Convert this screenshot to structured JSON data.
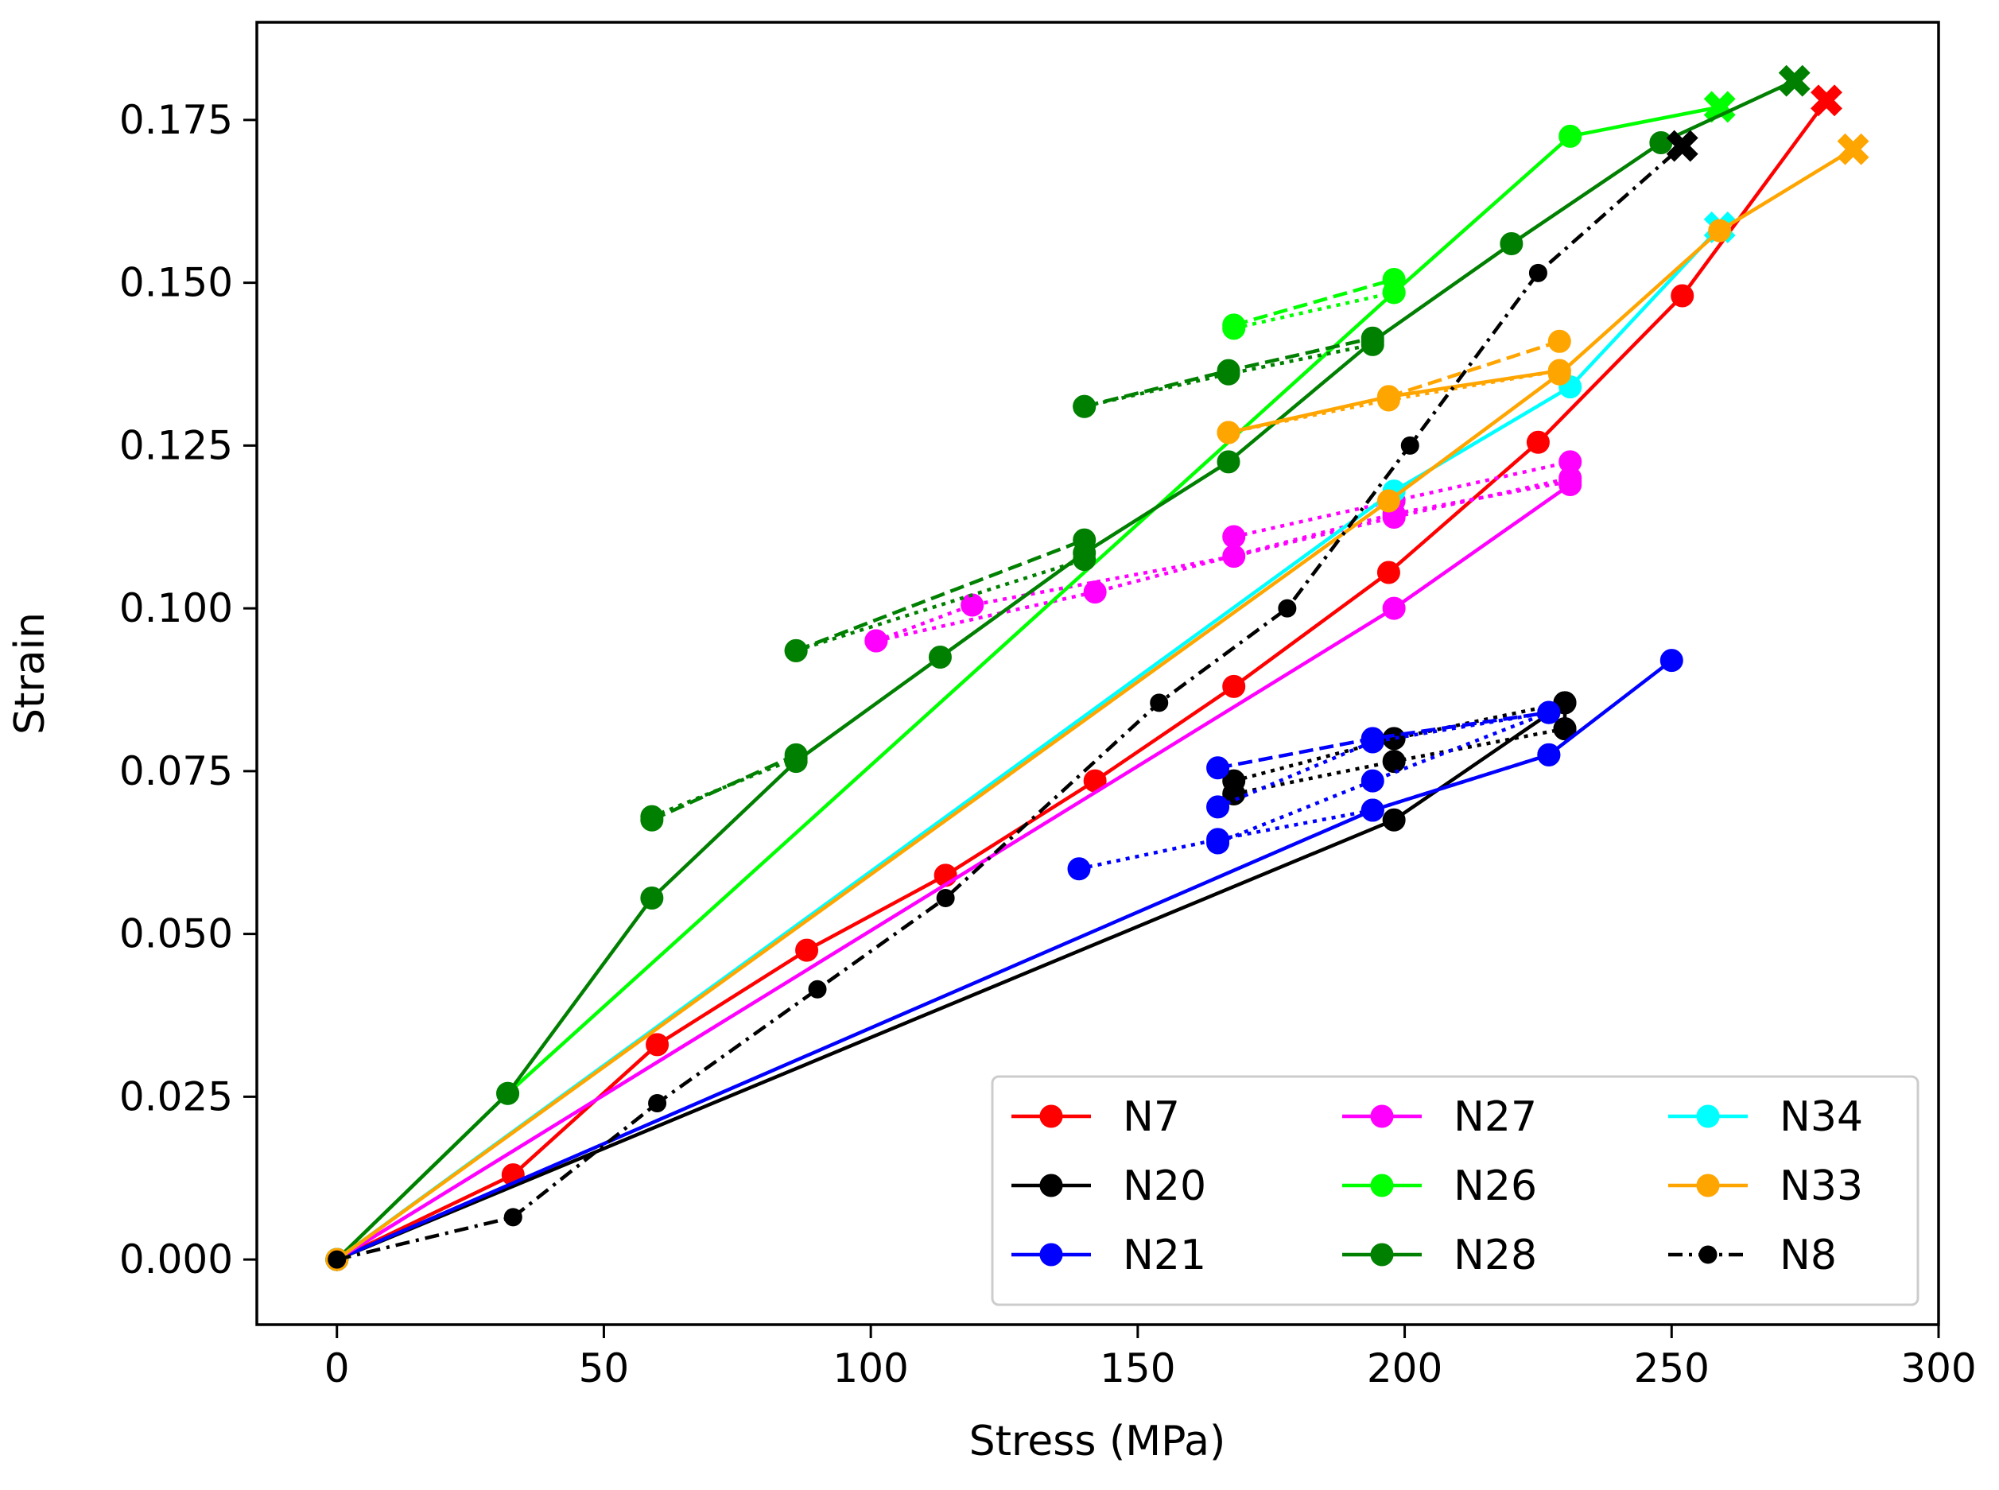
{
  "chart_data": {
    "type": "line",
    "title": "",
    "xlabel": "Stress (MPa)",
    "ylabel": "Strain",
    "xlim": [
      -15,
      300
    ],
    "ylim": [
      -0.01,
      0.19
    ],
    "xticks": [
      0,
      50,
      100,
      150,
      200,
      250,
      300
    ],
    "yticks": [
      0.0,
      0.025,
      0.05,
      0.075,
      0.1,
      0.125,
      0.15,
      0.175
    ],
    "xtick_labels": [
      "0",
      "50",
      "100",
      "150",
      "200",
      "250",
      "300"
    ],
    "ytick_labels": [
      "0.000",
      "0.025",
      "0.050",
      "0.075",
      "0.100",
      "0.125",
      "0.150",
      "0.175"
    ],
    "grid": false,
    "legend_position": "bottom-right",
    "series": [
      {
        "name": "N7",
        "color": "#ff0000",
        "style": "solid",
        "points": [
          [
            0,
            0.0
          ],
          [
            33,
            0.013
          ],
          [
            60,
            0.033
          ],
          [
            88,
            0.0475
          ],
          [
            114,
            0.059
          ],
          [
            142,
            0.0735
          ],
          [
            168,
            0.088
          ],
          [
            197,
            0.1055
          ],
          [
            225,
            0.1255
          ],
          [
            252,
            0.148
          ],
          [
            279,
            0.178
          ]
        ],
        "end_marker": [
          279,
          0.178
        ],
        "cycles": []
      },
      {
        "name": "N20",
        "color": "#000000",
        "style": "solid",
        "points": [
          [
            0,
            0.0
          ],
          [
            198,
            0.0675
          ],
          [
            230,
            0.0855
          ],
          [
            230,
            0.0815
          ]
        ],
        "end_marker": null,
        "cycles": [
          {
            "style": "dotted",
            "points": [
              [
                168,
                0.0735
              ],
              [
                198,
                0.08
              ],
              [
                230,
                0.0855
              ]
            ]
          },
          {
            "style": "dotted",
            "points": [
              [
                168,
                0.0715
              ],
              [
                198,
                0.0765
              ],
              [
                230,
                0.0815
              ]
            ]
          }
        ]
      },
      {
        "name": "N21",
        "color": "#0000ff",
        "style": "solid",
        "points": [
          [
            0,
            0.0
          ],
          [
            194,
            0.069
          ],
          [
            227,
            0.0775
          ],
          [
            250,
            0.092
          ]
        ],
        "end_marker": null,
        "cycles": [
          {
            "style": "dotted",
            "points": [
              [
                139,
                0.06
              ],
              [
                165,
                0.0645
              ],
              [
                194,
                0.069
              ],
              [
                227,
                0.0775
              ]
            ]
          },
          {
            "style": "dotted",
            "points": [
              [
                165,
                0.064
              ],
              [
                194,
                0.0735
              ],
              [
                227,
                0.084
              ]
            ]
          },
          {
            "style": "dotted",
            "points": [
              [
                165,
                0.0695
              ],
              [
                194,
                0.0795
              ],
              [
                227,
                0.084
              ]
            ]
          },
          {
            "style": "dashed",
            "points": [
              [
                165,
                0.0755
              ],
              [
                194,
                0.08
              ],
              [
                227,
                0.084
              ]
            ]
          }
        ]
      },
      {
        "name": "N27",
        "color": "#ff00ff",
        "style": "solid",
        "points": [
          [
            0,
            0.0
          ],
          [
            198,
            0.1
          ],
          [
            231,
            0.119
          ]
        ],
        "end_marker": null,
        "cycles": [
          {
            "style": "dotted",
            "points": [
              [
                101,
                0.095
              ],
              [
                142,
                0.1025
              ],
              [
                198,
                0.1145
              ],
              [
                231,
                0.1195
              ]
            ]
          },
          {
            "style": "dotted",
            "points": [
              [
                101,
                0.095
              ],
              [
                119,
                0.1005
              ],
              [
                168,
                0.108
              ],
              [
                198,
                0.114
              ],
              [
                231,
                0.12
              ]
            ]
          },
          {
            "style": "dotted",
            "points": [
              [
                168,
                0.111
              ],
              [
                198,
                0.1165
              ],
              [
                231,
                0.1225
              ]
            ]
          }
        ]
      },
      {
        "name": "N26",
        "color": "#00ff00",
        "style": "solid",
        "points": [
          [
            0,
            0.0
          ],
          [
            32,
            0.0255
          ],
          [
            198,
            0.1485
          ],
          [
            231,
            0.1725
          ],
          [
            259,
            0.177
          ]
        ],
        "end_marker": [
          259,
          0.177
        ],
        "cycles": [
          {
            "style": "dashed",
            "points": [
              [
                168,
                0.1435
              ],
              [
                198,
                0.1505
              ]
            ]
          },
          {
            "style": "dotted",
            "points": [
              [
                168,
                0.143
              ],
              [
                198,
                0.1485
              ]
            ]
          }
        ]
      },
      {
        "name": "N28",
        "color": "#008000",
        "style": "solid",
        "points": [
          [
            0,
            0.0
          ],
          [
            32,
            0.0255
          ],
          [
            59,
            0.0555
          ],
          [
            86,
            0.0765
          ],
          [
            113,
            0.0925
          ],
          [
            140,
            0.1085
          ],
          [
            167,
            0.1225
          ],
          [
            194,
            0.141
          ],
          [
            220,
            0.156
          ],
          [
            248,
            0.1715
          ],
          [
            273,
            0.181
          ]
        ],
        "end_marker": [
          273,
          0.181
        ],
        "cycles": [
          {
            "style": "dashed",
            "points": [
              [
                59,
                0.0675
              ],
              [
                86,
                0.0775
              ]
            ]
          },
          {
            "style": "dotted",
            "points": [
              [
                59,
                0.068
              ],
              [
                86,
                0.077
              ]
            ]
          },
          {
            "style": "dashed",
            "points": [
              [
                86,
                0.0935
              ],
              [
                140,
                0.1105
              ]
            ]
          },
          {
            "style": "dotted",
            "points": [
              [
                86,
                0.0935
              ],
              [
                140,
                0.1075
              ]
            ]
          },
          {
            "style": "dashed",
            "points": [
              [
                140,
                0.131
              ],
              [
                167,
                0.1365
              ],
              [
                194,
                0.1415
              ]
            ]
          },
          {
            "style": "dotted",
            "points": [
              [
                140,
                0.131
              ],
              [
                167,
                0.136
              ],
              [
                194,
                0.1405
              ]
            ]
          }
        ]
      },
      {
        "name": "N34",
        "color": "#00ffff",
        "style": "solid",
        "points": [
          [
            0,
            0.0
          ],
          [
            198,
            0.118
          ],
          [
            231,
            0.134
          ],
          [
            259,
            0.1585
          ]
        ],
        "end_marker": [
          259,
          0.1585
        ],
        "cycles": []
      },
      {
        "name": "N33",
        "color": "#ffa500",
        "style": "solid",
        "points": [
          [
            0,
            0.0
          ],
          [
            197,
            0.1165
          ],
          [
            229,
            0.136
          ],
          [
            259,
            0.158
          ],
          [
            284,
            0.1705
          ]
        ],
        "end_marker": [
          284,
          0.1705
        ],
        "cycles": [
          {
            "style": "solid",
            "points": [
              [
                167,
                0.127
              ],
              [
                197,
                0.1325
              ],
              [
                229,
                0.1365
              ]
            ]
          },
          {
            "style": "dotted",
            "points": [
              [
                167,
                0.127
              ],
              [
                197,
                0.132
              ],
              [
                229,
                0.1365
              ]
            ]
          },
          {
            "style": "dashed",
            "points": [
              [
                197,
                0.1325
              ],
              [
                229,
                0.141
              ]
            ]
          }
        ]
      },
      {
        "name": "N8",
        "color": "#000000",
        "style": "dashdot",
        "small_markers": true,
        "points": [
          [
            0,
            0.0
          ],
          [
            33,
            0.0065
          ],
          [
            60,
            0.024
          ],
          [
            90,
            0.0415
          ],
          [
            114,
            0.0555
          ],
          [
            154,
            0.0855
          ],
          [
            178,
            0.1
          ],
          [
            201,
            0.125
          ],
          [
            225,
            0.1515
          ],
          [
            252,
            0.171
          ]
        ],
        "end_marker": [
          252,
          0.171
        ],
        "cycles": []
      }
    ],
    "legend_order": [
      0,
      1,
      2,
      3,
      4,
      5,
      6,
      7,
      8
    ]
  }
}
